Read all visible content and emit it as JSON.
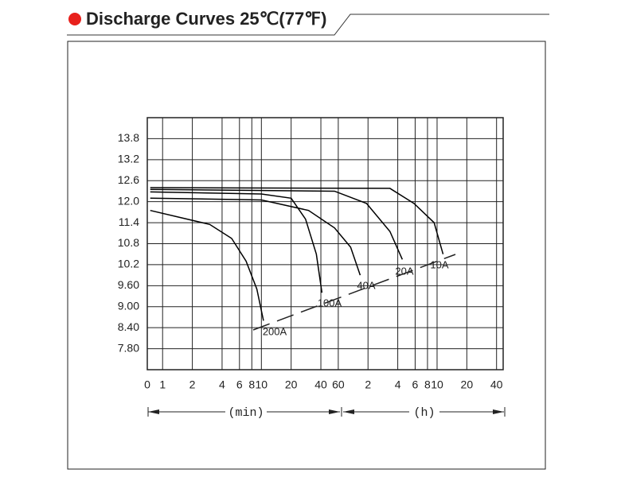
{
  "chart_data": {
    "type": "line",
    "title": "Discharge Curves 25℃(77℉)",
    "x_unit_left": "(min)",
    "x_unit_right": "(h)",
    "xscale": "log",
    "grid": true,
    "color": "#000000",
    "xlim": [
      0.7,
      2800
    ],
    "xticks": [
      {
        "value": 0.7,
        "label": "0"
      },
      1,
      2,
      4,
      6,
      8,
      10,
      20,
      40,
      60,
      {
        "value": 120,
        "label": "2"
      },
      {
        "value": 240,
        "label": "4"
      },
      {
        "value": 360,
        "label": "6"
      },
      {
        "value": 480,
        "label": "8"
      },
      {
        "value": 600,
        "label": "10"
      },
      {
        "value": 1200,
        "label": "20"
      },
      {
        "value": 2400,
        "label": "40"
      }
    ],
    "ylim": [
      7.2,
      14.4
    ],
    "yticks": [
      13.8,
      13.2,
      12.6,
      {
        "value": 12,
        "label": "12.0"
      },
      11.4,
      10.8,
      10.2,
      {
        "value": 9.6,
        "label": "9.60"
      },
      {
        "value": 9,
        "label": "9.00"
      },
      {
        "value": 8.4,
        "label": "8.40"
      },
      {
        "value": 7.8,
        "label": "7.80"
      }
    ],
    "series": [
      {
        "name": "200A",
        "x": [
          0.75,
          1.5,
          3,
          5,
          7,
          9,
          10.5
        ],
        "values": [
          11.75,
          11.55,
          11.35,
          10.95,
          10.3,
          9.5,
          8.6
        ]
      },
      {
        "name": "100A",
        "x": [
          0.75,
          10,
          20,
          28,
          36,
          41
        ],
        "values": [
          12.28,
          12.22,
          12.1,
          11.5,
          10.5,
          9.4
        ]
      },
      {
        "name": "40A",
        "x": [
          0.75,
          10,
          30,
          55,
          80,
          100
        ],
        "values": [
          12.1,
          12.05,
          11.75,
          11.25,
          10.7,
          9.9
        ]
      },
      {
        "name": "20A",
        "x": [
          0.75,
          55,
          116,
          200,
          267
        ],
        "values": [
          12.35,
          12.3,
          11.95,
          11.15,
          10.35
        ]
      },
      {
        "name": "10A",
        "x": [
          0.75,
          200,
          350,
          560,
          690
        ],
        "values": [
          12.4,
          12.38,
          11.95,
          11.4,
          10.5
        ]
      }
    ]
  }
}
